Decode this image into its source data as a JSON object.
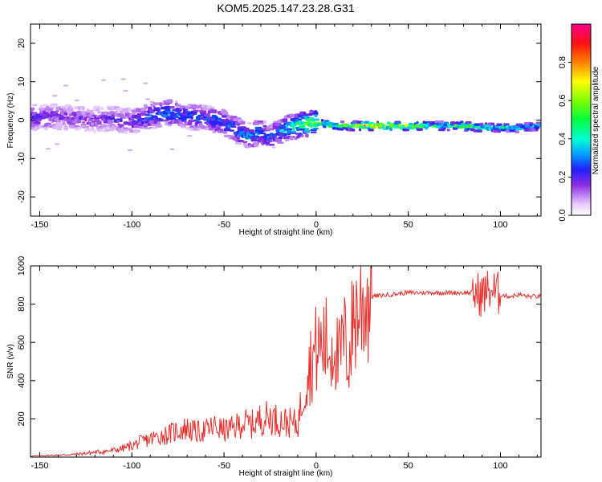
{
  "figure": {
    "title": "KOM5.2025.147.23.28.G31"
  },
  "chart_data": [
    {
      "type": "heatmap",
      "xlabel": "Height of straight line (km)",
      "ylabel": "Frequency (Hz)",
      "xlim": [
        -155,
        122
      ],
      "ylim": [
        -25,
        25
      ],
      "x_ticks": [
        "-150",
        "-100",
        "-50",
        "0",
        "50",
        "100"
      ],
      "x_tick_values": [
        -150,
        -100,
        -50,
        0,
        50,
        100
      ],
      "y_ticks": [
        "-20",
        "-10",
        "0",
        "10",
        "20"
      ],
      "y_tick_values": [
        -20,
        -10,
        0,
        10,
        20
      ],
      "colorbar": {
        "label": "Normalized spectral amplitude",
        "range": [
          0,
          1
        ],
        "ticks": [
          "0.0",
          "0.2",
          "0.4",
          "0.6",
          "0.8"
        ],
        "tick_values": [
          0.0,
          0.2,
          0.4,
          0.6,
          0.8
        ],
        "colormap": "rainbow (white-violet-blue-cyan-green-yellow-red-magenta)"
      },
      "ridge": {
        "x": [
          -155,
          -140,
          -130,
          -120,
          -110,
          -100,
          -90,
          -80,
          -70,
          -60,
          -50,
          -40,
          -35,
          -30,
          -25,
          -20,
          -15,
          -10,
          -5,
          0,
          5,
          10,
          20,
          30,
          40,
          50,
          60,
          70,
          80,
          90,
          100,
          110,
          122
        ],
        "freq": [
          0.5,
          1.0,
          0.5,
          0.0,
          0.5,
          -0.5,
          1.0,
          2.0,
          1.0,
          0.5,
          -0.5,
          -3.5,
          -4.0,
          -3.0,
          -4.5,
          -3.0,
          -2.0,
          -1.5,
          -1.0,
          -0.5,
          -1.0,
          -1.5,
          -1.5,
          -1.5,
          -1.5,
          -1.5,
          -1.5,
          -1.5,
          -1.5,
          -2.0,
          -2.0,
          -2.0,
          -1.5
        ],
        "amplitude": [
          0.25,
          0.2,
          0.2,
          0.18,
          0.22,
          0.25,
          0.3,
          0.35,
          0.3,
          0.3,
          0.3,
          0.35,
          0.35,
          0.35,
          0.3,
          0.35,
          0.4,
          0.5,
          0.55,
          0.65,
          0.6,
          0.6,
          0.65,
          0.8,
          0.75,
          0.7,
          0.55,
          0.5,
          0.6,
          0.55,
          0.45,
          0.4,
          0.4
        ]
      }
    },
    {
      "type": "line",
      "xlabel": "Height of straight line (km)",
      "ylabel": "SNR (v/v)",
      "xlim": [
        -155,
        122
      ],
      "ylim": [
        0,
        1000
      ],
      "x_ticks": [
        "-150",
        "-100",
        "-50",
        "0",
        "50",
        "100"
      ],
      "x_tick_values": [
        -150,
        -100,
        -50,
        0,
        50,
        100
      ],
      "y_ticks": [
        "200",
        "400",
        "600",
        "800",
        "1000"
      ],
      "y_tick_values": [
        200,
        400,
        600,
        800,
        1000
      ],
      "color": "#e8302c",
      "series": [
        {
          "x": [
            -155,
            -140,
            -130,
            -120,
            -110,
            -105,
            -100,
            -95,
            -90,
            -85,
            -80,
            -75,
            -70,
            -65,
            -60,
            -55,
            -50,
            -45,
            -40,
            -35,
            -30,
            -25,
            -20,
            -15,
            -10,
            -5,
            0,
            5,
            8,
            10,
            12,
            15,
            18,
            20,
            25,
            30,
            40,
            50,
            60,
            70,
            80,
            85,
            90,
            93,
            95,
            97,
            100,
            105,
            110,
            115,
            122
          ],
          "y": [
            5,
            10,
            15,
            25,
            35,
            45,
            60,
            80,
            95,
            110,
            120,
            140,
            150,
            130,
            140,
            160,
            140,
            150,
            180,
            170,
            200,
            210,
            190,
            180,
            170,
            450,
            560,
            600,
            550,
            640,
            480,
            620,
            520,
            720,
            800,
            840,
            850,
            860,
            860,
            860,
            860,
            860,
            850,
            870,
            880,
            860,
            850,
            840,
            850,
            840,
            840
          ]
        }
      ]
    }
  ]
}
